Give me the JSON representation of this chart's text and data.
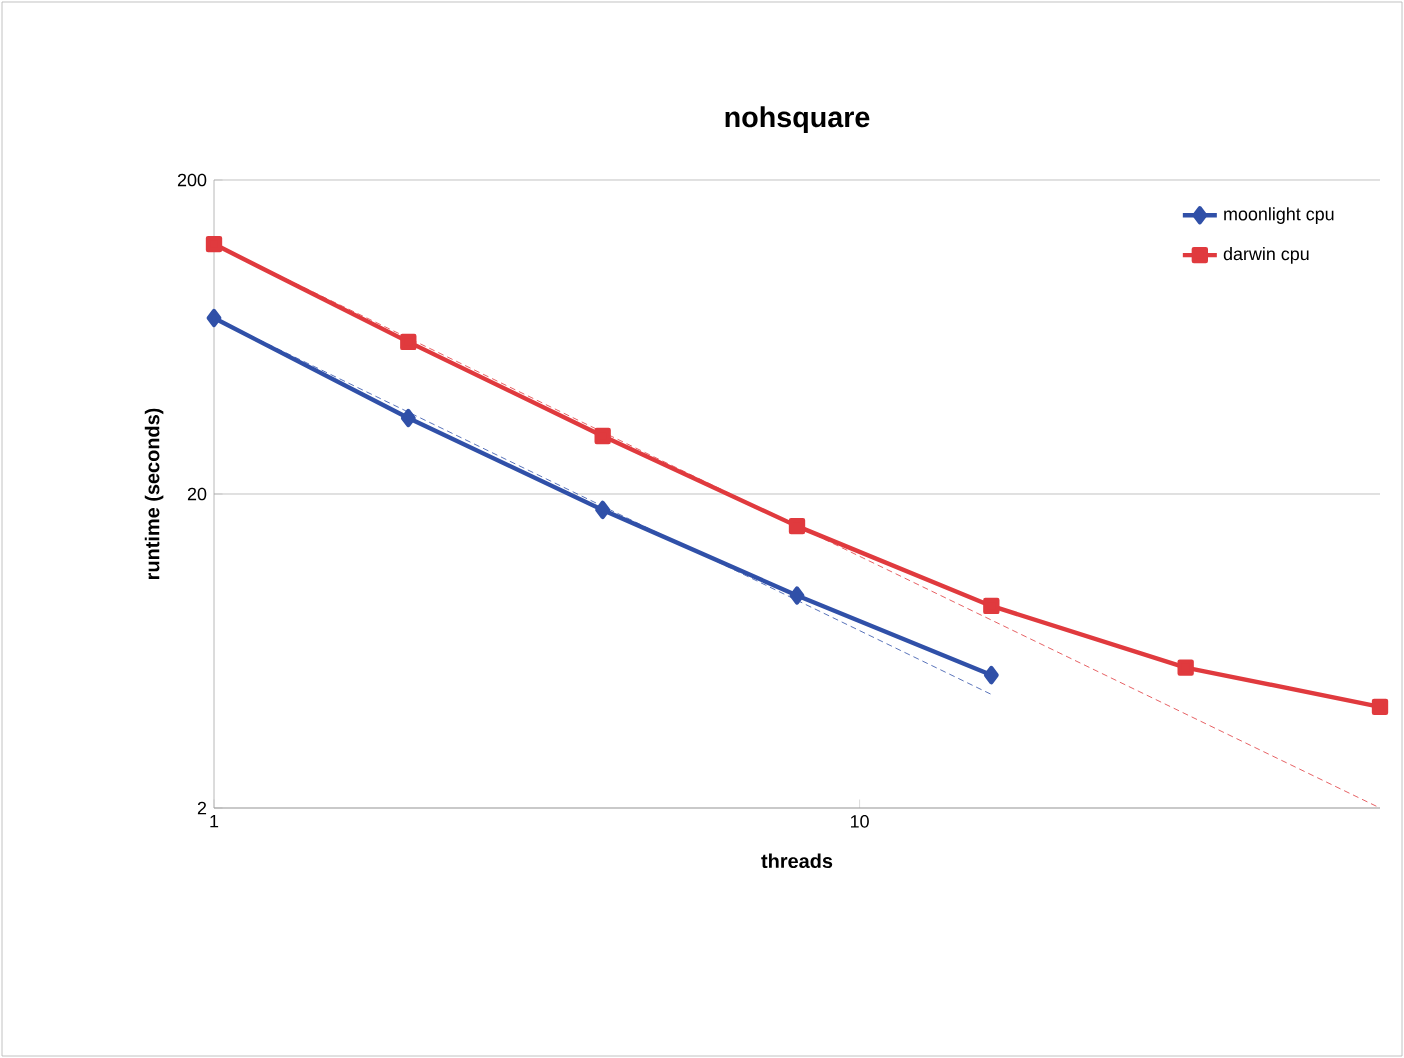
{
  "chart_data": {
    "type": "line",
    "title": "nohsquare",
    "xlabel": "threads",
    "ylabel": "runtime (seconds)",
    "log": "xy",
    "xlim": [
      1,
      64
    ],
    "ylim": [
      2,
      200
    ],
    "xticks": [
      1,
      10
    ],
    "yticks": [
      2,
      20,
      200
    ],
    "grid": "y",
    "legend": "top right",
    "x": [
      1,
      2,
      4,
      8,
      16,
      32,
      64
    ],
    "series": [
      {
        "name": "moonlight cpu",
        "color": "#3050a8",
        "marker": "diamond",
        "x": [
          1,
          2,
          4,
          8,
          16
        ],
        "values": [
          72.7,
          34.9,
          17.8,
          9.5,
          5.3
        ]
      },
      {
        "name": "darwin cpu",
        "color": "#e03a3e",
        "marker": "square",
        "values": [
          125,
          61,
          30.6,
          15.8,
          8.8,
          5.6,
          4.2
        ]
      },
      {
        "color": "#3050a8",
        "marker": "none",
        "line_style": "dashed",
        "x": [
          1,
          16
        ],
        "values": [
          72.7,
          4.6
        ]
      },
      {
        "color": "#e03a3e",
        "marker": "none",
        "line_style": "dashed",
        "x": [
          1,
          64
        ],
        "values": [
          125,
          2
        ]
      }
    ]
  }
}
